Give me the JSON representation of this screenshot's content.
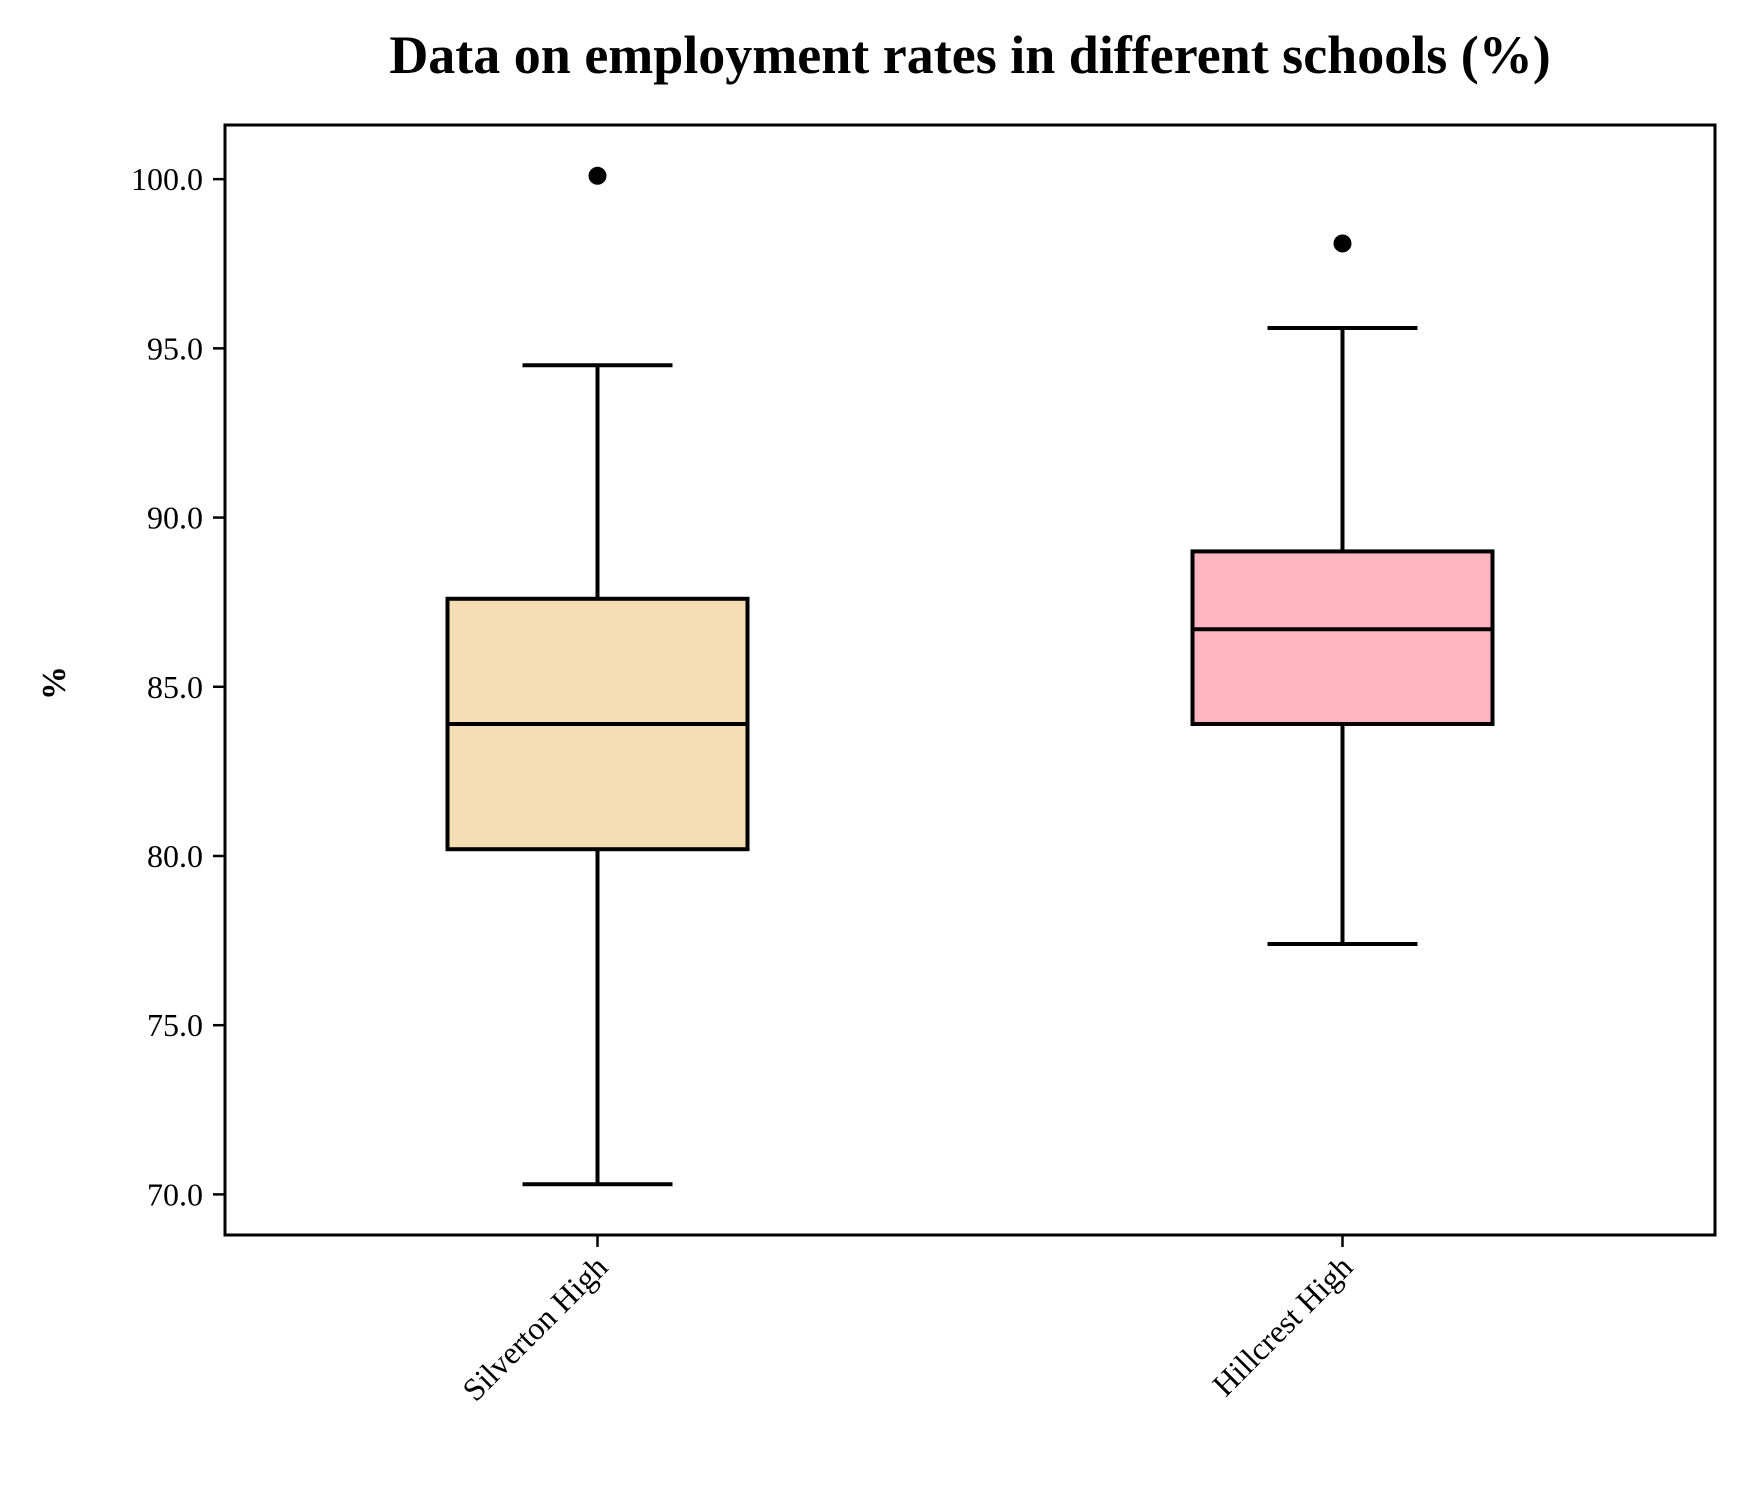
{
  "chart_data": {
    "type": "box",
    "title": "Data on employment rates in different schools (%)",
    "xlabel": "",
    "ylabel": "%",
    "ylim": [
      68.8,
      101.6
    ],
    "yticks": [
      70.0,
      75.0,
      80.0,
      85.0,
      90.0,
      95.0,
      100.0
    ],
    "ytick_labels": [
      "70.0",
      "75.0",
      "80.0",
      "85.0",
      "90.0",
      "95.0",
      "100.0"
    ],
    "categories": [
      "Silverton High",
      "Hillcrest High"
    ],
    "boxes": [
      {
        "name": "Silverton High",
        "whisker_low": 70.3,
        "q1": 80.2,
        "median": 83.9,
        "q3": 87.6,
        "whisker_high": 94.5,
        "outliers": [
          100.1
        ],
        "color": "#f5deb3"
      },
      {
        "name": "Hillcrest High",
        "whisker_low": 77.4,
        "q1": 83.9,
        "median": 86.7,
        "q3": 89.0,
        "whisker_high": 95.6,
        "outliers": [
          98.1
        ],
        "color": "#ffb6c1"
      }
    ],
    "grid": false,
    "legend": "none"
  }
}
